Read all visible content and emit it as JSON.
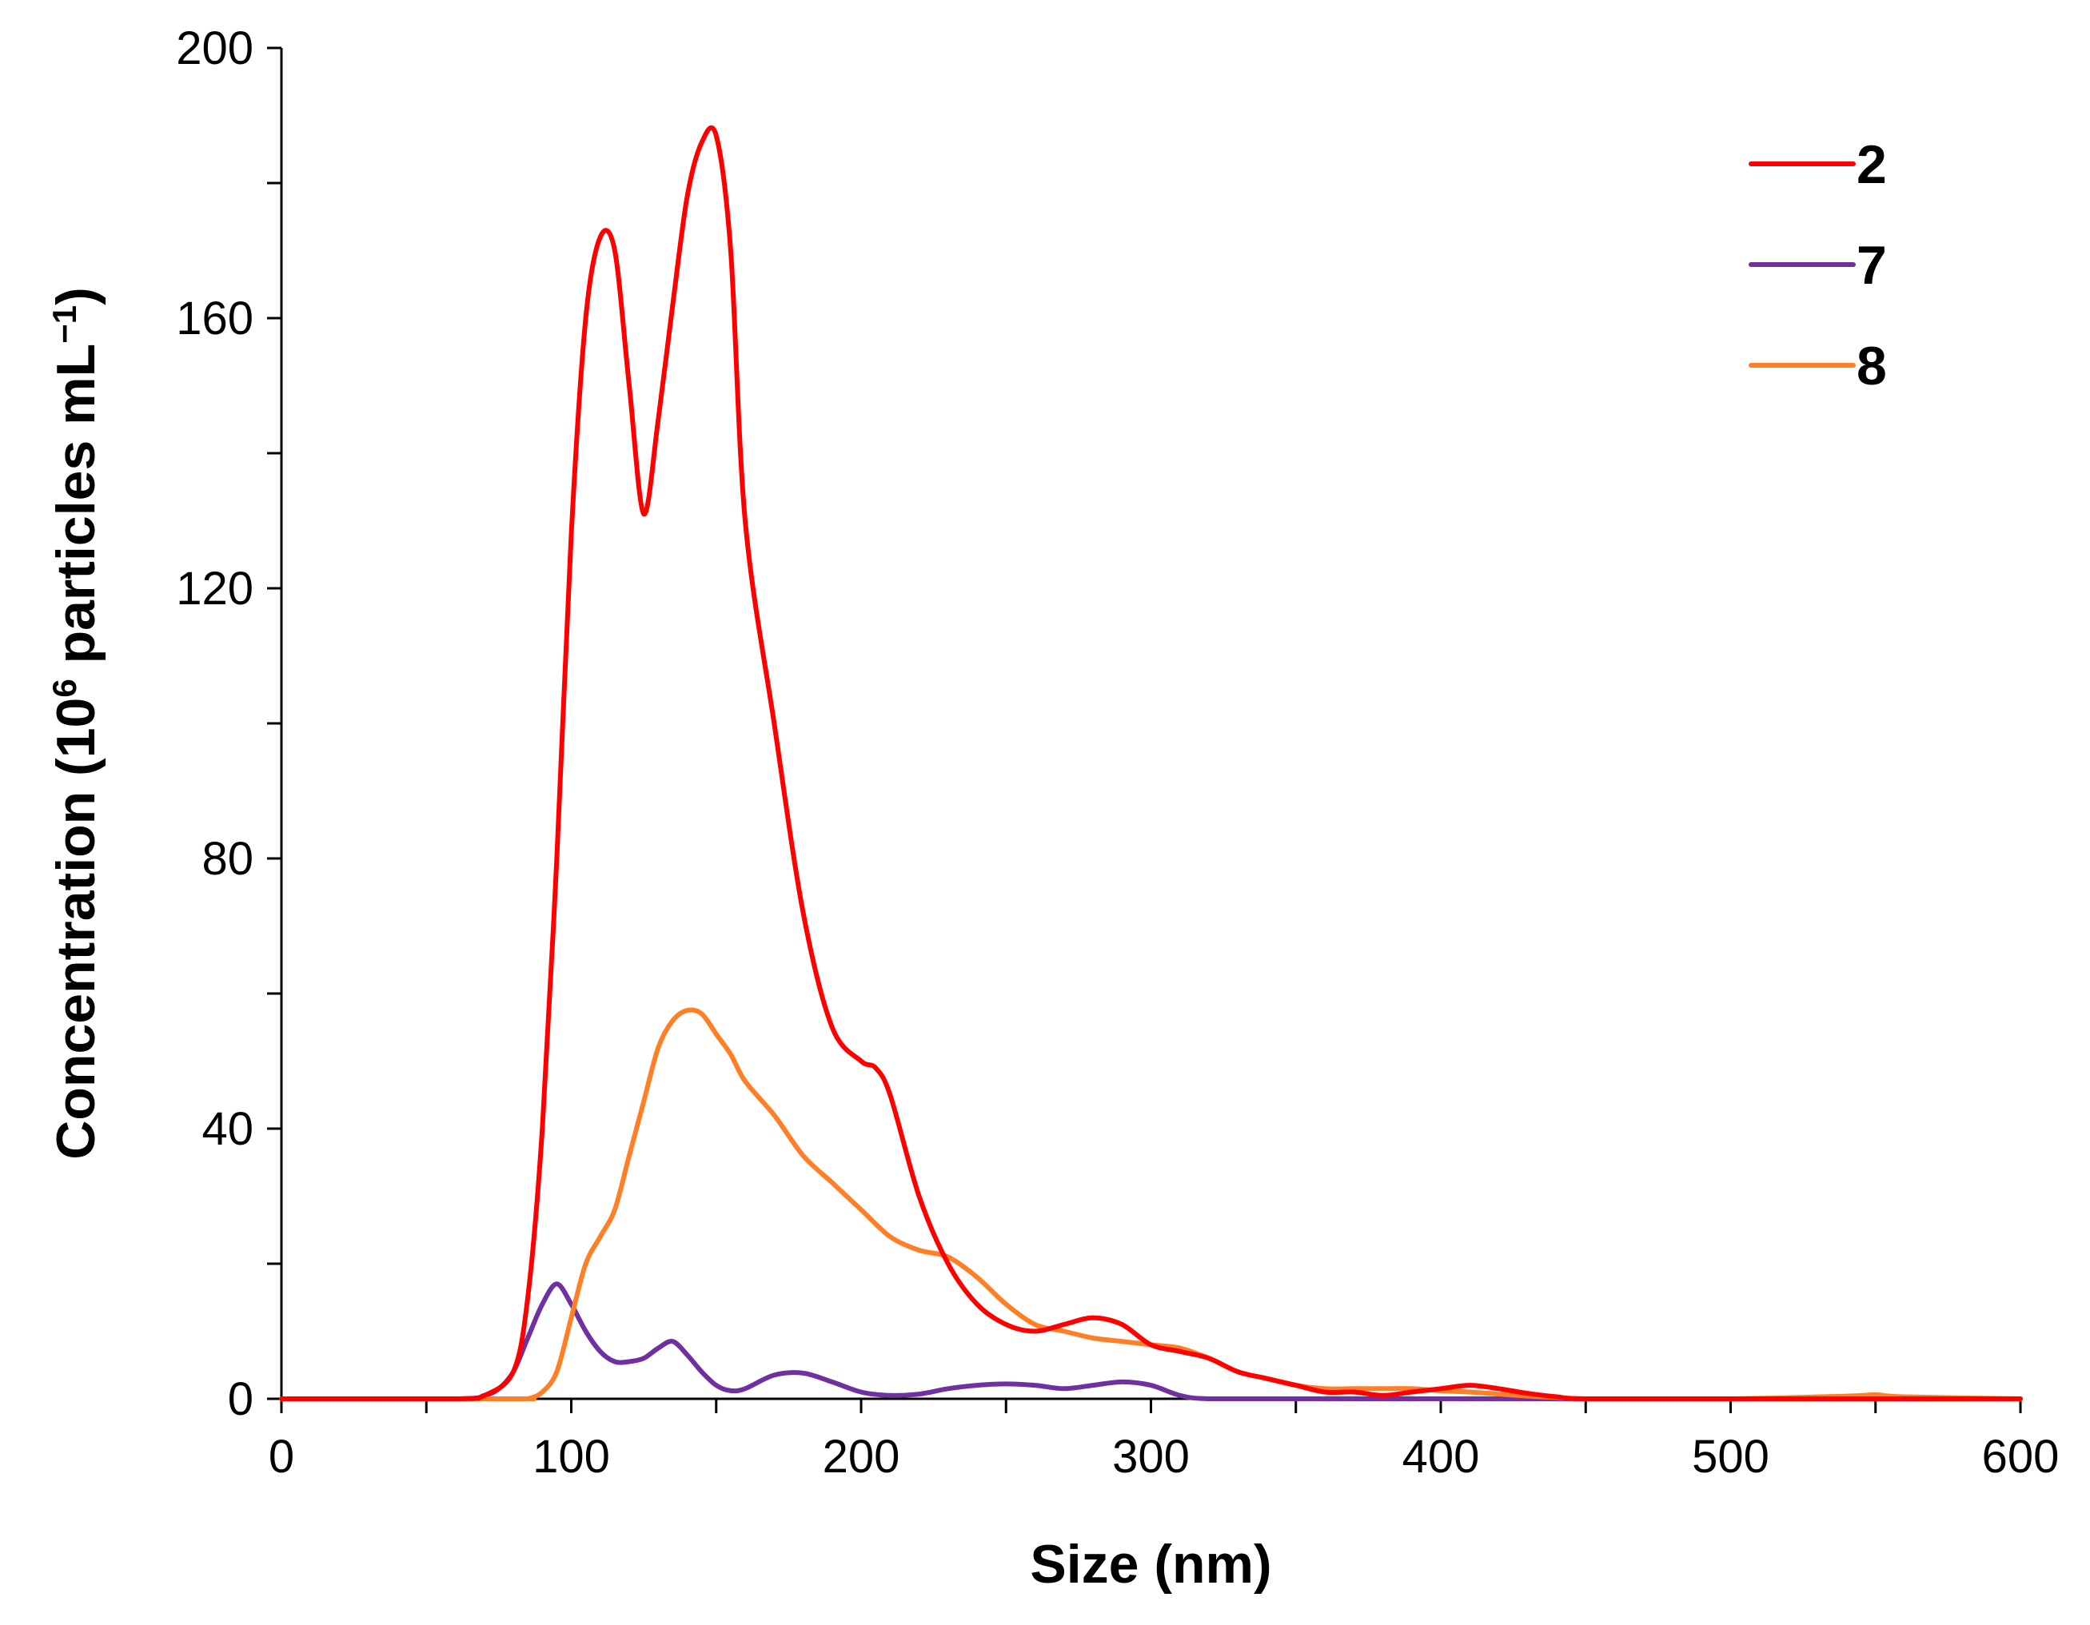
{
  "chart_data": {
    "type": "line",
    "title": "",
    "xlabel": "Size (nm)",
    "ylabel_prefix": "Concentration (10",
    "ylabel_sup1": "6",
    "ylabel_middle": " particles mL",
    "ylabel_sup2": "−1",
    "ylabel_suffix": ")",
    "xlim": [
      0,
      600
    ],
    "ylim": [
      0,
      200
    ],
    "xticks": [
      0,
      100,
      200,
      300,
      400,
      500,
      600
    ],
    "xtick_labels": [
      "0",
      "100",
      "200",
      "300",
      "400",
      "500",
      "600"
    ],
    "yticks": [
      0,
      40,
      80,
      120,
      160,
      200
    ],
    "ytick_labels": [
      "0",
      "40",
      "80",
      "120",
      "160",
      "200"
    ],
    "legend_position": "top-right",
    "grid": false,
    "series": [
      {
        "name": "2",
        "color": "#ff0000",
        "x": [
          0,
          60,
          70,
          80,
          85,
          90,
          95,
          100,
          105,
          110,
          115,
          120,
          125,
          130,
          135,
          140,
          145,
          150,
          155,
          160,
          170,
          180,
          190,
          200,
          205,
          210,
          220,
          230,
          240,
          250,
          260,
          270,
          280,
          290,
          300,
          310,
          320,
          330,
          340,
          350,
          360,
          370,
          380,
          390,
          400,
          410,
          420,
          430,
          440,
          450,
          500,
          550,
          600
        ],
        "y": [
          0,
          0,
          0.5,
          4,
          15,
          40,
          80,
          128,
          160,
          172,
          170,
          150,
          131,
          145,
          162,
          178,
          186,
          187,
          170,
          130,
          100,
          72,
          55,
          50,
          49,
          45,
          30,
          20,
          14,
          11,
          10,
          11,
          12,
          11,
          8,
          7,
          6,
          4,
          3,
          2,
          1,
          1,
          0.5,
          1,
          1.5,
          2,
          1.5,
          0.8,
          0.3,
          0,
          0,
          0,
          0
        ]
      },
      {
        "name": "7",
        "color": "#7030a0",
        "x": [
          0,
          60,
          70,
          75,
          80,
          85,
          90,
          95,
          100,
          105,
          110,
          115,
          120,
          125,
          130,
          135,
          140,
          145,
          150,
          155,
          160,
          170,
          180,
          190,
          200,
          210,
          220,
          230,
          240,
          250,
          260,
          270,
          280,
          290,
          300,
          310,
          320,
          350,
          400,
          450,
          500,
          550,
          600
        ],
        "y": [
          0,
          0,
          0.5,
          1.5,
          4,
          9,
          14,
          17,
          14,
          10,
          7,
          5.5,
          5.5,
          6,
          7.5,
          8.5,
          6.5,
          4,
          2,
          1.2,
          1.5,
          3.5,
          3.8,
          2.5,
          1,
          0.5,
          0.7,
          1.5,
          2,
          2.2,
          2,
          1.5,
          2,
          2.5,
          2,
          0.5,
          0,
          0,
          0,
          0,
          0,
          0,
          0
        ]
      },
      {
        "name": "8",
        "color": "#ff7f27",
        "x": [
          0,
          80,
          85,
          90,
          95,
          100,
          105,
          110,
          115,
          120,
          125,
          130,
          135,
          140,
          145,
          150,
          155,
          160,
          170,
          180,
          190,
          200,
          210,
          220,
          230,
          240,
          250,
          260,
          270,
          280,
          290,
          300,
          310,
          320,
          330,
          340,
          350,
          360,
          370,
          380,
          390,
          400,
          410,
          420,
          430,
          440,
          450,
          500,
          540,
          550,
          560,
          600
        ],
        "y": [
          0,
          0,
          0,
          1,
          4,
          12,
          20,
          24,
          28,
          36,
          44,
          52,
          56,
          57.5,
          57,
          54,
          51,
          47,
          42,
          36,
          32,
          28,
          24,
          22,
          21,
          18,
          14,
          11,
          10,
          9,
          8.5,
          8,
          7.5,
          6,
          4,
          3,
          2,
          1.5,
          1.5,
          1.5,
          1.5,
          1.2,
          1,
          0.7,
          0.4,
          0.2,
          0,
          0,
          0.4,
          0.6,
          0.3,
          0
        ]
      }
    ]
  }
}
